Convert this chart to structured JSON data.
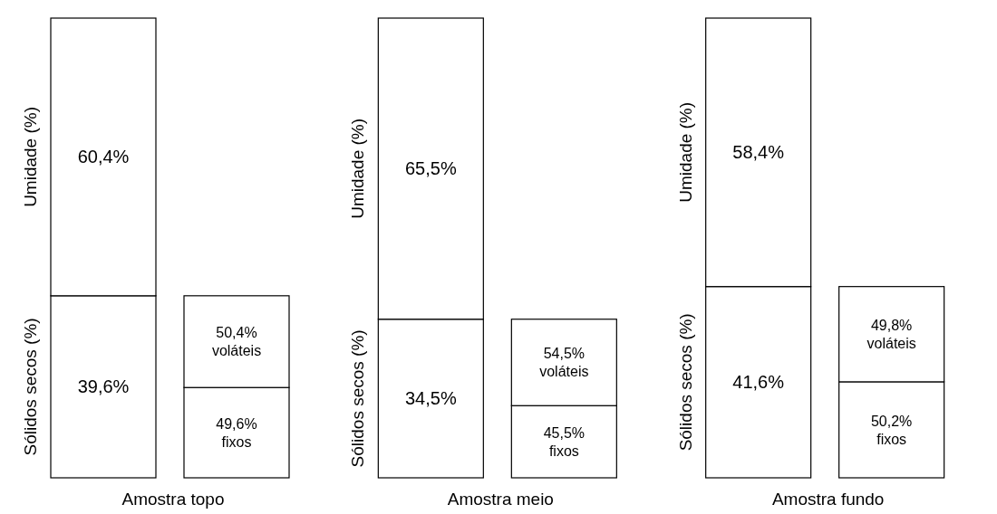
{
  "chart_data": [
    {
      "type": "bar",
      "stacked": true,
      "xlabel": "Amostra topo",
      "categories": [
        null
      ],
      "ylim": [
        0,
        100
      ],
      "series": [
        {
          "name": "Sólidos secos (%)",
          "color": "#ffffff",
          "values": [
            39.6
          ],
          "value_labels": [
            "39,6%"
          ]
        },
        {
          "name": "Umidade (%)",
          "color": "#ffffff",
          "values": [
            60.4
          ],
          "value_labels": [
            "60,4%"
          ]
        }
      ]
    },
    {
      "type": "bar",
      "stacked": true,
      "categories": [
        null
      ],
      "ylim": [
        0,
        100
      ],
      "series": [
        {
          "color": "#ffffff",
          "values": [
            49.6
          ],
          "value_labels": [
            "49,6%\nfixos"
          ]
        },
        {
          "color": "#ffffff",
          "values": [
            50.4
          ],
          "value_labels": [
            "50,4%\nvoláteis"
          ]
        }
      ]
    },
    {
      "type": "bar",
      "stacked": true,
      "xlabel": "Amostra meio",
      "categories": [
        null
      ],
      "ylim": [
        0,
        100
      ],
      "series": [
        {
          "name": "Sólidos secos (%)",
          "color": "#ffffff",
          "values": [
            34.5
          ],
          "value_labels": [
            "34,5%"
          ]
        },
        {
          "name": "Umidade (%)",
          "color": "#ffffff",
          "values": [
            65.5
          ],
          "value_labels": [
            "65,5%"
          ]
        }
      ]
    },
    {
      "type": "bar",
      "stacked": true,
      "categories": [
        null
      ],
      "ylim": [
        0,
        100
      ],
      "series": [
        {
          "color": "#ffffff",
          "values": [
            45.5
          ],
          "value_labels": [
            "45,5%\nfixos"
          ]
        },
        {
          "color": "#ffffff",
          "values": [
            54.5
          ],
          "value_labels": [
            "54,5%\nvoláteis"
          ]
        }
      ]
    },
    {
      "type": "bar",
      "stacked": true,
      "xlabel": "Amostra fundo",
      "categories": [
        null
      ],
      "ylim": [
        0,
        100
      ],
      "series": [
        {
          "name": "Sólidos secos (%)",
          "color": "#ffffff",
          "values": [
            41.6
          ],
          "value_labels": [
            "41,6%"
          ]
        },
        {
          "name": "Umidade (%)",
          "color": "#ffffff",
          "values": [
            58.4
          ],
          "value_labels": [
            "58,4%"
          ]
        }
      ]
    },
    {
      "type": "bar",
      "stacked": true,
      "categories": [
        null
      ],
      "ylim": [
        0,
        100
      ],
      "series": [
        {
          "color": "#ffffff",
          "values": [
            50.2
          ],
          "value_labels": [
            "50,2%\nfixos"
          ]
        },
        {
          "color": "#ffffff",
          "values": [
            49.8
          ],
          "value_labels": [
            "49,8%\nvoláteis"
          ]
        }
      ]
    }
  ]
}
